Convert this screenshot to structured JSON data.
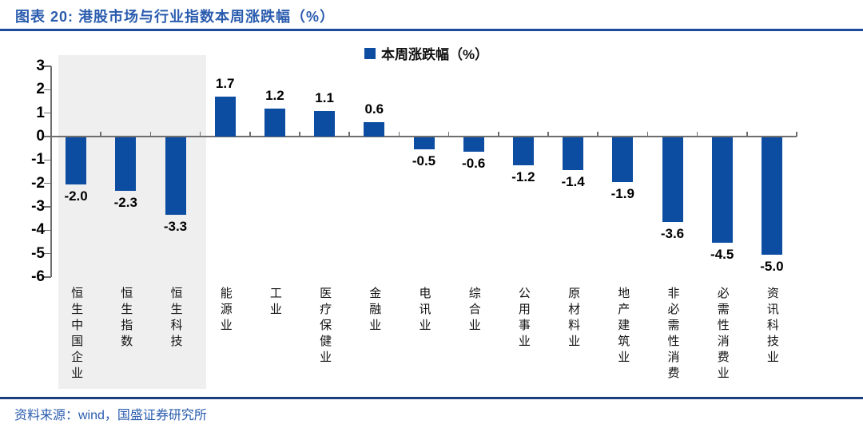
{
  "figure": {
    "title": "图表 20: 港股市场与行业指数本周涨跌幅（%）",
    "source": "资料来源：wind，国盛证券研究所"
  },
  "legend": {
    "label": "本周涨跌幅（%）"
  },
  "colors": {
    "bar_blue": "#0c4da2",
    "title_blue": "#2a5cae",
    "rule_navy": "#1d4b9b",
    "highlight_band": "#efefef",
    "axis_gray": "#6e6e6e"
  },
  "chart_data": {
    "type": "bar",
    "title": "港股市场与行业指数本周涨跌幅（%）",
    "legend_entries": [
      "本周涨跌幅（%）"
    ],
    "legend_position": "top",
    "grid": false,
    "categories": [
      "恒生中国企业",
      "恒生指数",
      "恒生科技",
      "能源业",
      "工业",
      "医疗保健业",
      "金融业",
      "电讯业",
      "综合业",
      "公用事业",
      "原材料业",
      "地产建筑业",
      "非必需性消费",
      "必需性消费业",
      "资讯科技业"
    ],
    "values": [
      -2.0,
      -2.3,
      -3.3,
      1.7,
      1.2,
      1.1,
      0.6,
      -0.5,
      -0.6,
      -1.2,
      -1.4,
      -1.9,
      -3.6,
      -4.5,
      -5.0
    ],
    "ylim": [
      -6,
      3
    ],
    "yticks": [
      3,
      2,
      1,
      0,
      -1,
      -2,
      -3,
      -4,
      -5,
      -6
    ],
    "highlighted_categories": [
      "恒生中国企业",
      "恒生指数",
      "恒生科技"
    ]
  }
}
